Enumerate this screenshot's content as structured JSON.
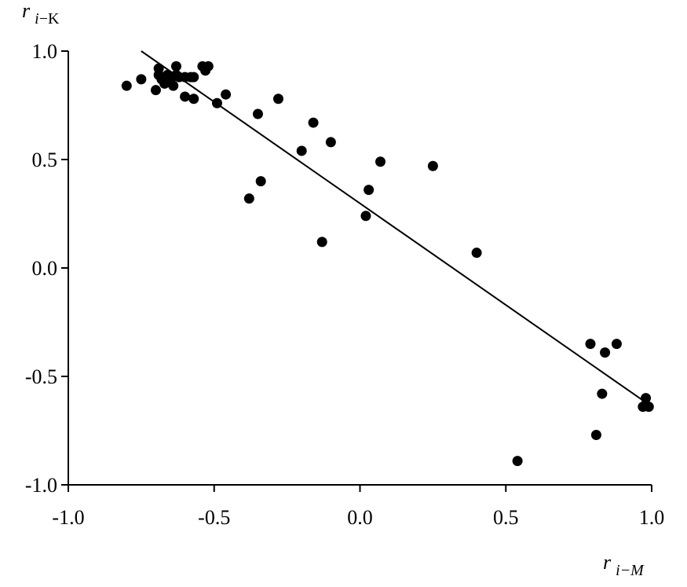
{
  "chart_data": {
    "type": "scatter",
    "title": "",
    "xlabel": {
      "var": "r",
      "sub_i": "i",
      "sub_rest": "−M",
      "text": "r i−M"
    },
    "ylabel": {
      "var": "r",
      "sub_i": "i",
      "sub_rest": "−K",
      "text": "r i−K"
    },
    "xlim": [
      -1.0,
      1.0
    ],
    "ylim": [
      -1.0,
      1.0
    ],
    "xticks": [
      -1.0,
      -0.5,
      0.0,
      0.5,
      1.0
    ],
    "xtick_labels": [
      "-1.0",
      "-0.5",
      "0.0",
      "0.5",
      "1.0"
    ],
    "yticks": [
      -1.0,
      -0.5,
      0.0,
      0.5,
      1.0
    ],
    "ytick_labels": [
      "-1.0",
      "-0.5",
      "0.0",
      "0.5",
      "1.0"
    ],
    "grid": false,
    "legend": "none",
    "marker_color": "#000000",
    "points": [
      {
        "x": -0.8,
        "y": 0.84
      },
      {
        "x": -0.75,
        "y": 0.87
      },
      {
        "x": -0.7,
        "y": 0.82
      },
      {
        "x": -0.69,
        "y": 0.89
      },
      {
        "x": -0.69,
        "y": 0.92
      },
      {
        "x": -0.68,
        "y": 0.87
      },
      {
        "x": -0.67,
        "y": 0.85
      },
      {
        "x": -0.66,
        "y": 0.89
      },
      {
        "x": -0.65,
        "y": 0.86
      },
      {
        "x": -0.64,
        "y": 0.84
      },
      {
        "x": -0.63,
        "y": 0.89
      },
      {
        "x": -0.63,
        "y": 0.93
      },
      {
        "x": -0.62,
        "y": 0.88
      },
      {
        "x": -0.6,
        "y": 0.88
      },
      {
        "x": -0.6,
        "y": 0.79
      },
      {
        "x": -0.58,
        "y": 0.88
      },
      {
        "x": -0.57,
        "y": 0.78
      },
      {
        "x": -0.57,
        "y": 0.88
      },
      {
        "x": -0.54,
        "y": 0.93
      },
      {
        "x": -0.53,
        "y": 0.91
      },
      {
        "x": -0.52,
        "y": 0.93
      },
      {
        "x": -0.49,
        "y": 0.76
      },
      {
        "x": -0.46,
        "y": 0.8
      },
      {
        "x": -0.38,
        "y": 0.32
      },
      {
        "x": -0.35,
        "y": 0.71
      },
      {
        "x": -0.34,
        "y": 0.4
      },
      {
        "x": -0.28,
        "y": 0.78
      },
      {
        "x": -0.2,
        "y": 0.54
      },
      {
        "x": -0.16,
        "y": 0.67
      },
      {
        "x": -0.13,
        "y": 0.12
      },
      {
        "x": -0.1,
        "y": 0.58
      },
      {
        "x": 0.02,
        "y": 0.24
      },
      {
        "x": 0.03,
        "y": 0.36
      },
      {
        "x": 0.07,
        "y": 0.49
      },
      {
        "x": 0.25,
        "y": 0.47
      },
      {
        "x": 0.4,
        "y": 0.07
      },
      {
        "x": 0.54,
        "y": -0.89
      },
      {
        "x": 0.79,
        "y": -0.35
      },
      {
        "x": 0.81,
        "y": -0.77
      },
      {
        "x": 0.83,
        "y": -0.58
      },
      {
        "x": 0.84,
        "y": -0.39
      },
      {
        "x": 0.88,
        "y": -0.35
      },
      {
        "x": 0.97,
        "y": -0.64
      },
      {
        "x": 0.98,
        "y": -0.63
      },
      {
        "x": 0.98,
        "y": -0.6
      },
      {
        "x": 0.99,
        "y": -0.64
      }
    ],
    "trend_line": {
      "x": [
        -0.75,
        0.98
      ],
      "y": [
        1.0,
        -0.62
      ]
    }
  }
}
